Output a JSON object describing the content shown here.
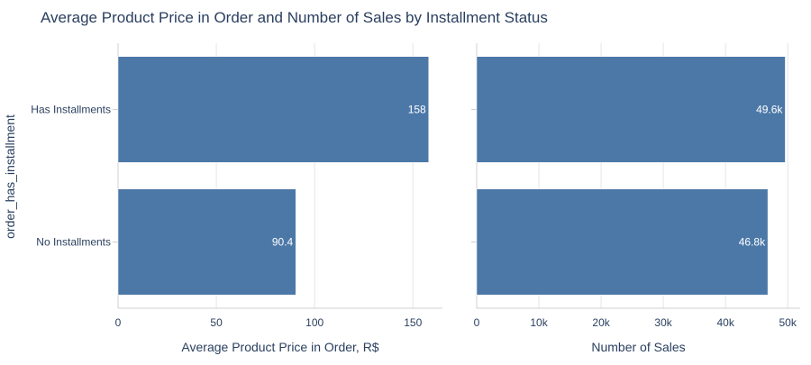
{
  "chart_data": {
    "type": "bar",
    "orientation": "horizontal",
    "title": "Average Product Price in Order and Number of Sales by Installment Status",
    "ylabel": "order_has_installment",
    "categories": [
      "Has Installments",
      "No Installments"
    ],
    "bar_color": "#4c78a8",
    "grid": true,
    "panels": [
      {
        "xlabel": "Average Product Price in Order, R$",
        "values": [
          158,
          90.4
        ],
        "value_labels": [
          "158",
          "90.4"
        ],
        "xlim": [
          0,
          165
        ],
        "ticks": [
          0,
          50,
          100,
          150
        ],
        "tick_labels": [
          "0",
          "50",
          "100",
          "150"
        ]
      },
      {
        "xlabel": "Number of Sales",
        "values": [
          49600,
          46800
        ],
        "value_labels": [
          "49.6k",
          "46.8k"
        ],
        "xlim": [
          0,
          52000
        ],
        "ticks": [
          0,
          10000,
          20000,
          30000,
          40000,
          50000
        ],
        "tick_labels": [
          "0",
          "10k",
          "20k",
          "30k",
          "40k",
          "50k"
        ]
      }
    ]
  }
}
